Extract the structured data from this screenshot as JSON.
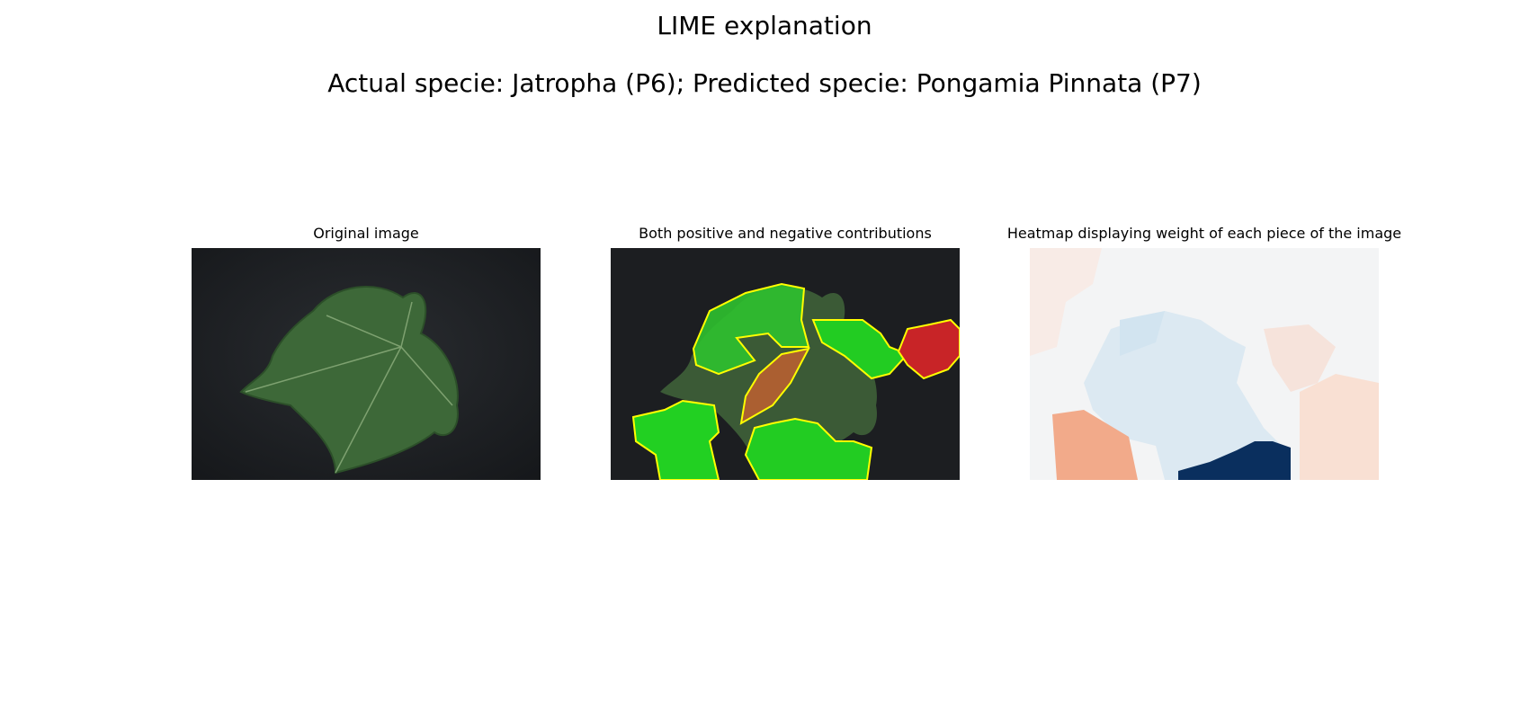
{
  "figure": {
    "title": "LIME explanation",
    "subtitle": "Actual specie: Jatropha (P6); Predicted specie: Pongamia Pinnata (P7)"
  },
  "panels": [
    {
      "title": "Original image"
    },
    {
      "title": "Both positive and negative contributions"
    },
    {
      "title": "Heatmap displaying weight of each piece of the image"
    }
  ],
  "colors": {
    "background_dark": "#1b1d20",
    "leaf": "#3f6a3b",
    "positive": "#1fd11f",
    "negative": "#c8252a",
    "boundary": "#ffff00",
    "heat_strong_blue": "#0a2f5e",
    "heat_orange": "#f2aa8a"
  }
}
